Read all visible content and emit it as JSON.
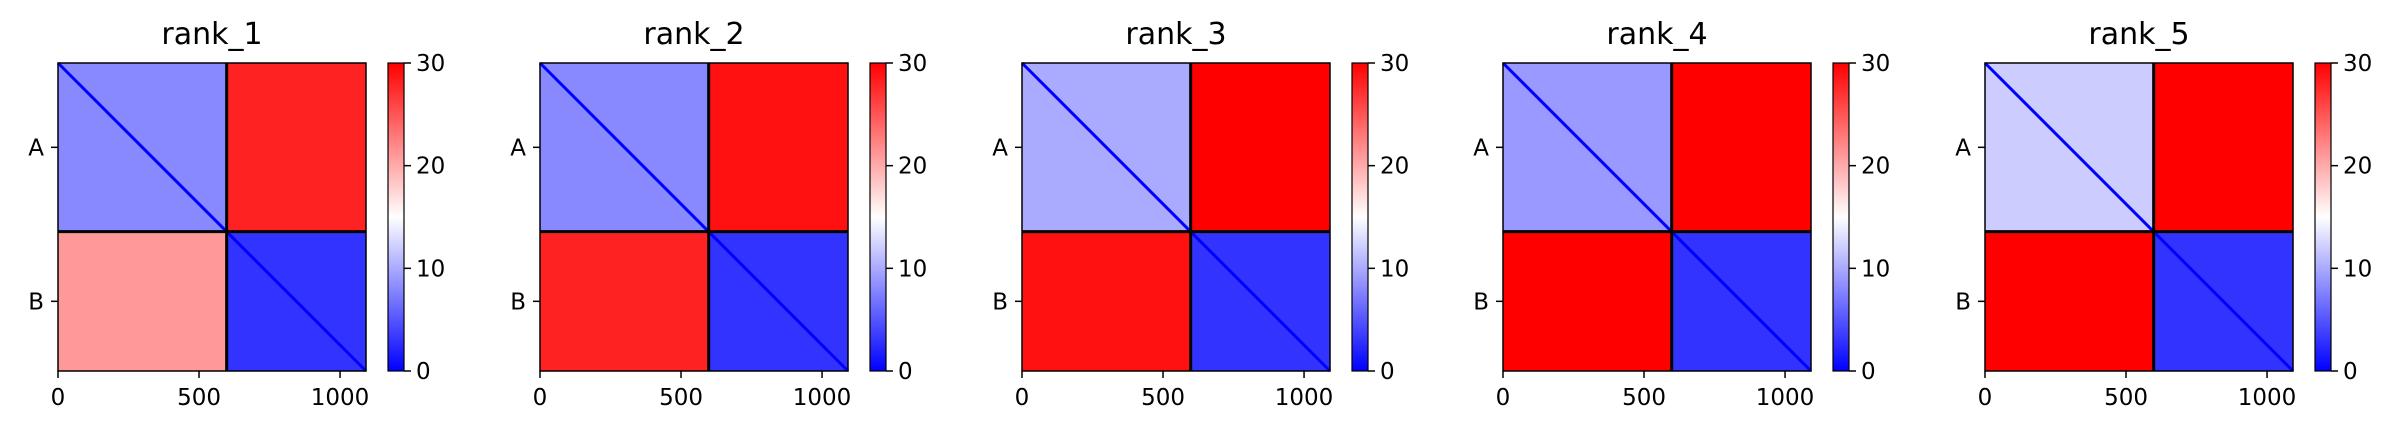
{
  "chart_data": [
    {
      "type": "heatmap",
      "title": "rank_1",
      "xlabel": "",
      "ylabel": "",
      "x_ticks": [
        0,
        500,
        1000
      ],
      "xlim": [
        0,
        1092
      ],
      "chain_boundary": 598,
      "y_tick_labels": [
        "A",
        "B"
      ],
      "colorbar": {
        "ticks": [
          0,
          10,
          20,
          30
        ],
        "range": [
          0,
          30
        ],
        "colormap": "bwr"
      },
      "blocks": [
        {
          "name": "A-A",
          "mean_value": 8
        },
        {
          "name": "A-B",
          "mean_value": 28
        },
        {
          "name": "B-A",
          "mean_value": 21
        },
        {
          "name": "B-B",
          "mean_value": 3
        }
      ]
    },
    {
      "type": "heatmap",
      "title": "rank_2",
      "xlabel": "",
      "ylabel": "",
      "x_ticks": [
        0,
        500,
        1000
      ],
      "xlim": [
        0,
        1092
      ],
      "chain_boundary": 598,
      "y_tick_labels": [
        "A",
        "B"
      ],
      "colorbar": {
        "ticks": [
          0,
          10,
          20,
          30
        ],
        "range": [
          0,
          30
        ],
        "colormap": "bwr"
      },
      "blocks": [
        {
          "name": "A-A",
          "mean_value": 8
        },
        {
          "name": "A-B",
          "mean_value": 29
        },
        {
          "name": "B-A",
          "mean_value": 28
        },
        {
          "name": "B-B",
          "mean_value": 3
        }
      ]
    },
    {
      "type": "heatmap",
      "title": "rank_3",
      "xlabel": "",
      "ylabel": "",
      "x_ticks": [
        0,
        500,
        1000
      ],
      "xlim": [
        0,
        1092
      ],
      "chain_boundary": 598,
      "y_tick_labels": [
        "A",
        "B"
      ],
      "colorbar": {
        "ticks": [
          0,
          10,
          20,
          30
        ],
        "range": [
          0,
          30
        ],
        "colormap": "bwr"
      },
      "blocks": [
        {
          "name": "A-A",
          "mean_value": 10
        },
        {
          "name": "A-B",
          "mean_value": 30
        },
        {
          "name": "B-A",
          "mean_value": 29
        },
        {
          "name": "B-B",
          "mean_value": 3
        }
      ]
    },
    {
      "type": "heatmap",
      "title": "rank_4",
      "xlabel": "",
      "ylabel": "",
      "x_ticks": [
        0,
        500,
        1000
      ],
      "xlim": [
        0,
        1092
      ],
      "chain_boundary": 598,
      "y_tick_labels": [
        "A",
        "B"
      ],
      "colorbar": {
        "ticks": [
          0,
          10,
          20,
          30
        ],
        "range": [
          0,
          30
        ],
        "colormap": "bwr"
      },
      "blocks": [
        {
          "name": "A-A",
          "mean_value": 9
        },
        {
          "name": "A-B",
          "mean_value": 30
        },
        {
          "name": "B-A",
          "mean_value": 30
        },
        {
          "name": "B-B",
          "mean_value": 3
        }
      ]
    },
    {
      "type": "heatmap",
      "title": "rank_5",
      "xlabel": "",
      "ylabel": "",
      "x_ticks": [
        0,
        500,
        1000
      ],
      "xlim": [
        0,
        1092
      ],
      "chain_boundary": 598,
      "y_tick_labels": [
        "A",
        "B"
      ],
      "colorbar": {
        "ticks": [
          0,
          10,
          20,
          30
        ],
        "range": [
          0,
          30
        ],
        "colormap": "bwr"
      },
      "blocks": [
        {
          "name": "A-A",
          "mean_value": 12
        },
        {
          "name": "A-B",
          "mean_value": 30
        },
        {
          "name": "B-A",
          "mean_value": 30
        },
        {
          "name": "B-B",
          "mean_value": 3
        }
      ]
    }
  ],
  "colors": {
    "low": "#0000ff",
    "mid": "#ffffff",
    "high": "#ff0000",
    "divider": "#000000",
    "text": "#000000"
  }
}
